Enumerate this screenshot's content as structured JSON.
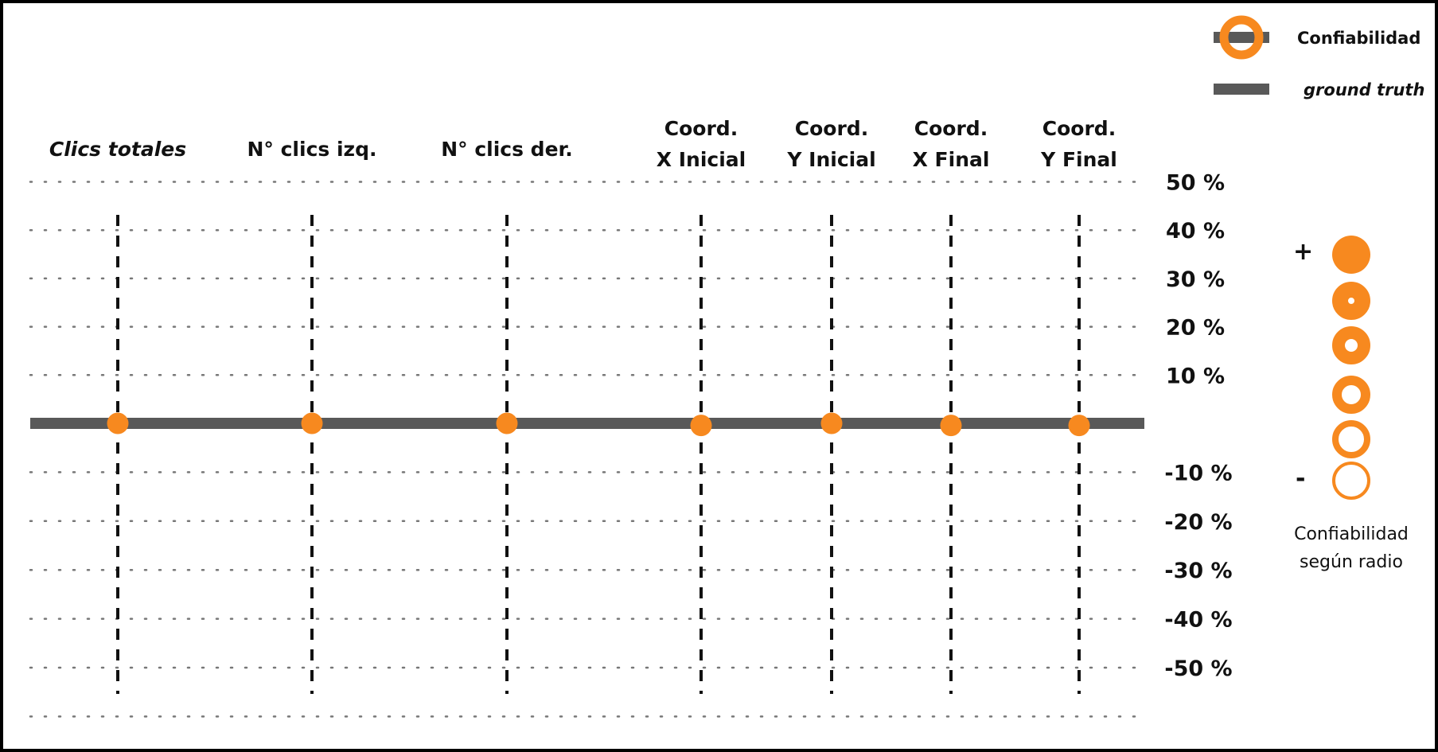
{
  "chart_data": {
    "type": "scatter",
    "categories": [
      {
        "lines": [
          "Clics totales"
        ],
        "italic": true
      },
      {
        "lines": [
          "N° clics izq."
        ],
        "italic": false
      },
      {
        "lines": [
          "N° clics der."
        ],
        "italic": false
      },
      {
        "lines": [
          "Coord.",
          "X Inicial"
        ],
        "italic": false
      },
      {
        "lines": [
          "Coord.",
          "Y Inicial"
        ],
        "italic": false
      },
      {
        "lines": [
          "Coord.",
          "X Final"
        ],
        "italic": false
      },
      {
        "lines": [
          "Coord.",
          "Y Final"
        ],
        "italic": false
      }
    ],
    "values": [
      0,
      0,
      0,
      -0.1,
      0,
      -0.1,
      -0.1
    ],
    "y_ticks": [
      {
        "value": 50,
        "label": "50 %"
      },
      {
        "value": 40,
        "label": "40 %"
      },
      {
        "value": 30,
        "label": "30 %"
      },
      {
        "value": 20,
        "label": "20 %"
      },
      {
        "value": 10,
        "label": "10 %"
      },
      {
        "value": -10,
        "label": "-10 %"
      },
      {
        "value": -20,
        "label": "-20 %"
      },
      {
        "value": -30,
        "label": "-30 %"
      },
      {
        "value": -40,
        "label": "-40 %"
      },
      {
        "value": -50,
        "label": "-50 %"
      }
    ],
    "ylim": [
      -50,
      50
    ],
    "ground_truth": 0,
    "legend": [
      {
        "label": "Confiabilidad",
        "italic": false
      },
      {
        "label": "ground truth",
        "italic": true
      }
    ],
    "confidence_scale": {
      "plus": "+",
      "minus": "-",
      "caption": [
        "Confiabilidad",
        "según radio"
      ],
      "levels": [
        1.0,
        0.8,
        0.6,
        0.4,
        0.2,
        0.0
      ]
    },
    "grid": true,
    "colors": {
      "marker": "#f7891f",
      "ground_truth": "#595959",
      "guide": "#111111",
      "grid": "#777777"
    }
  }
}
